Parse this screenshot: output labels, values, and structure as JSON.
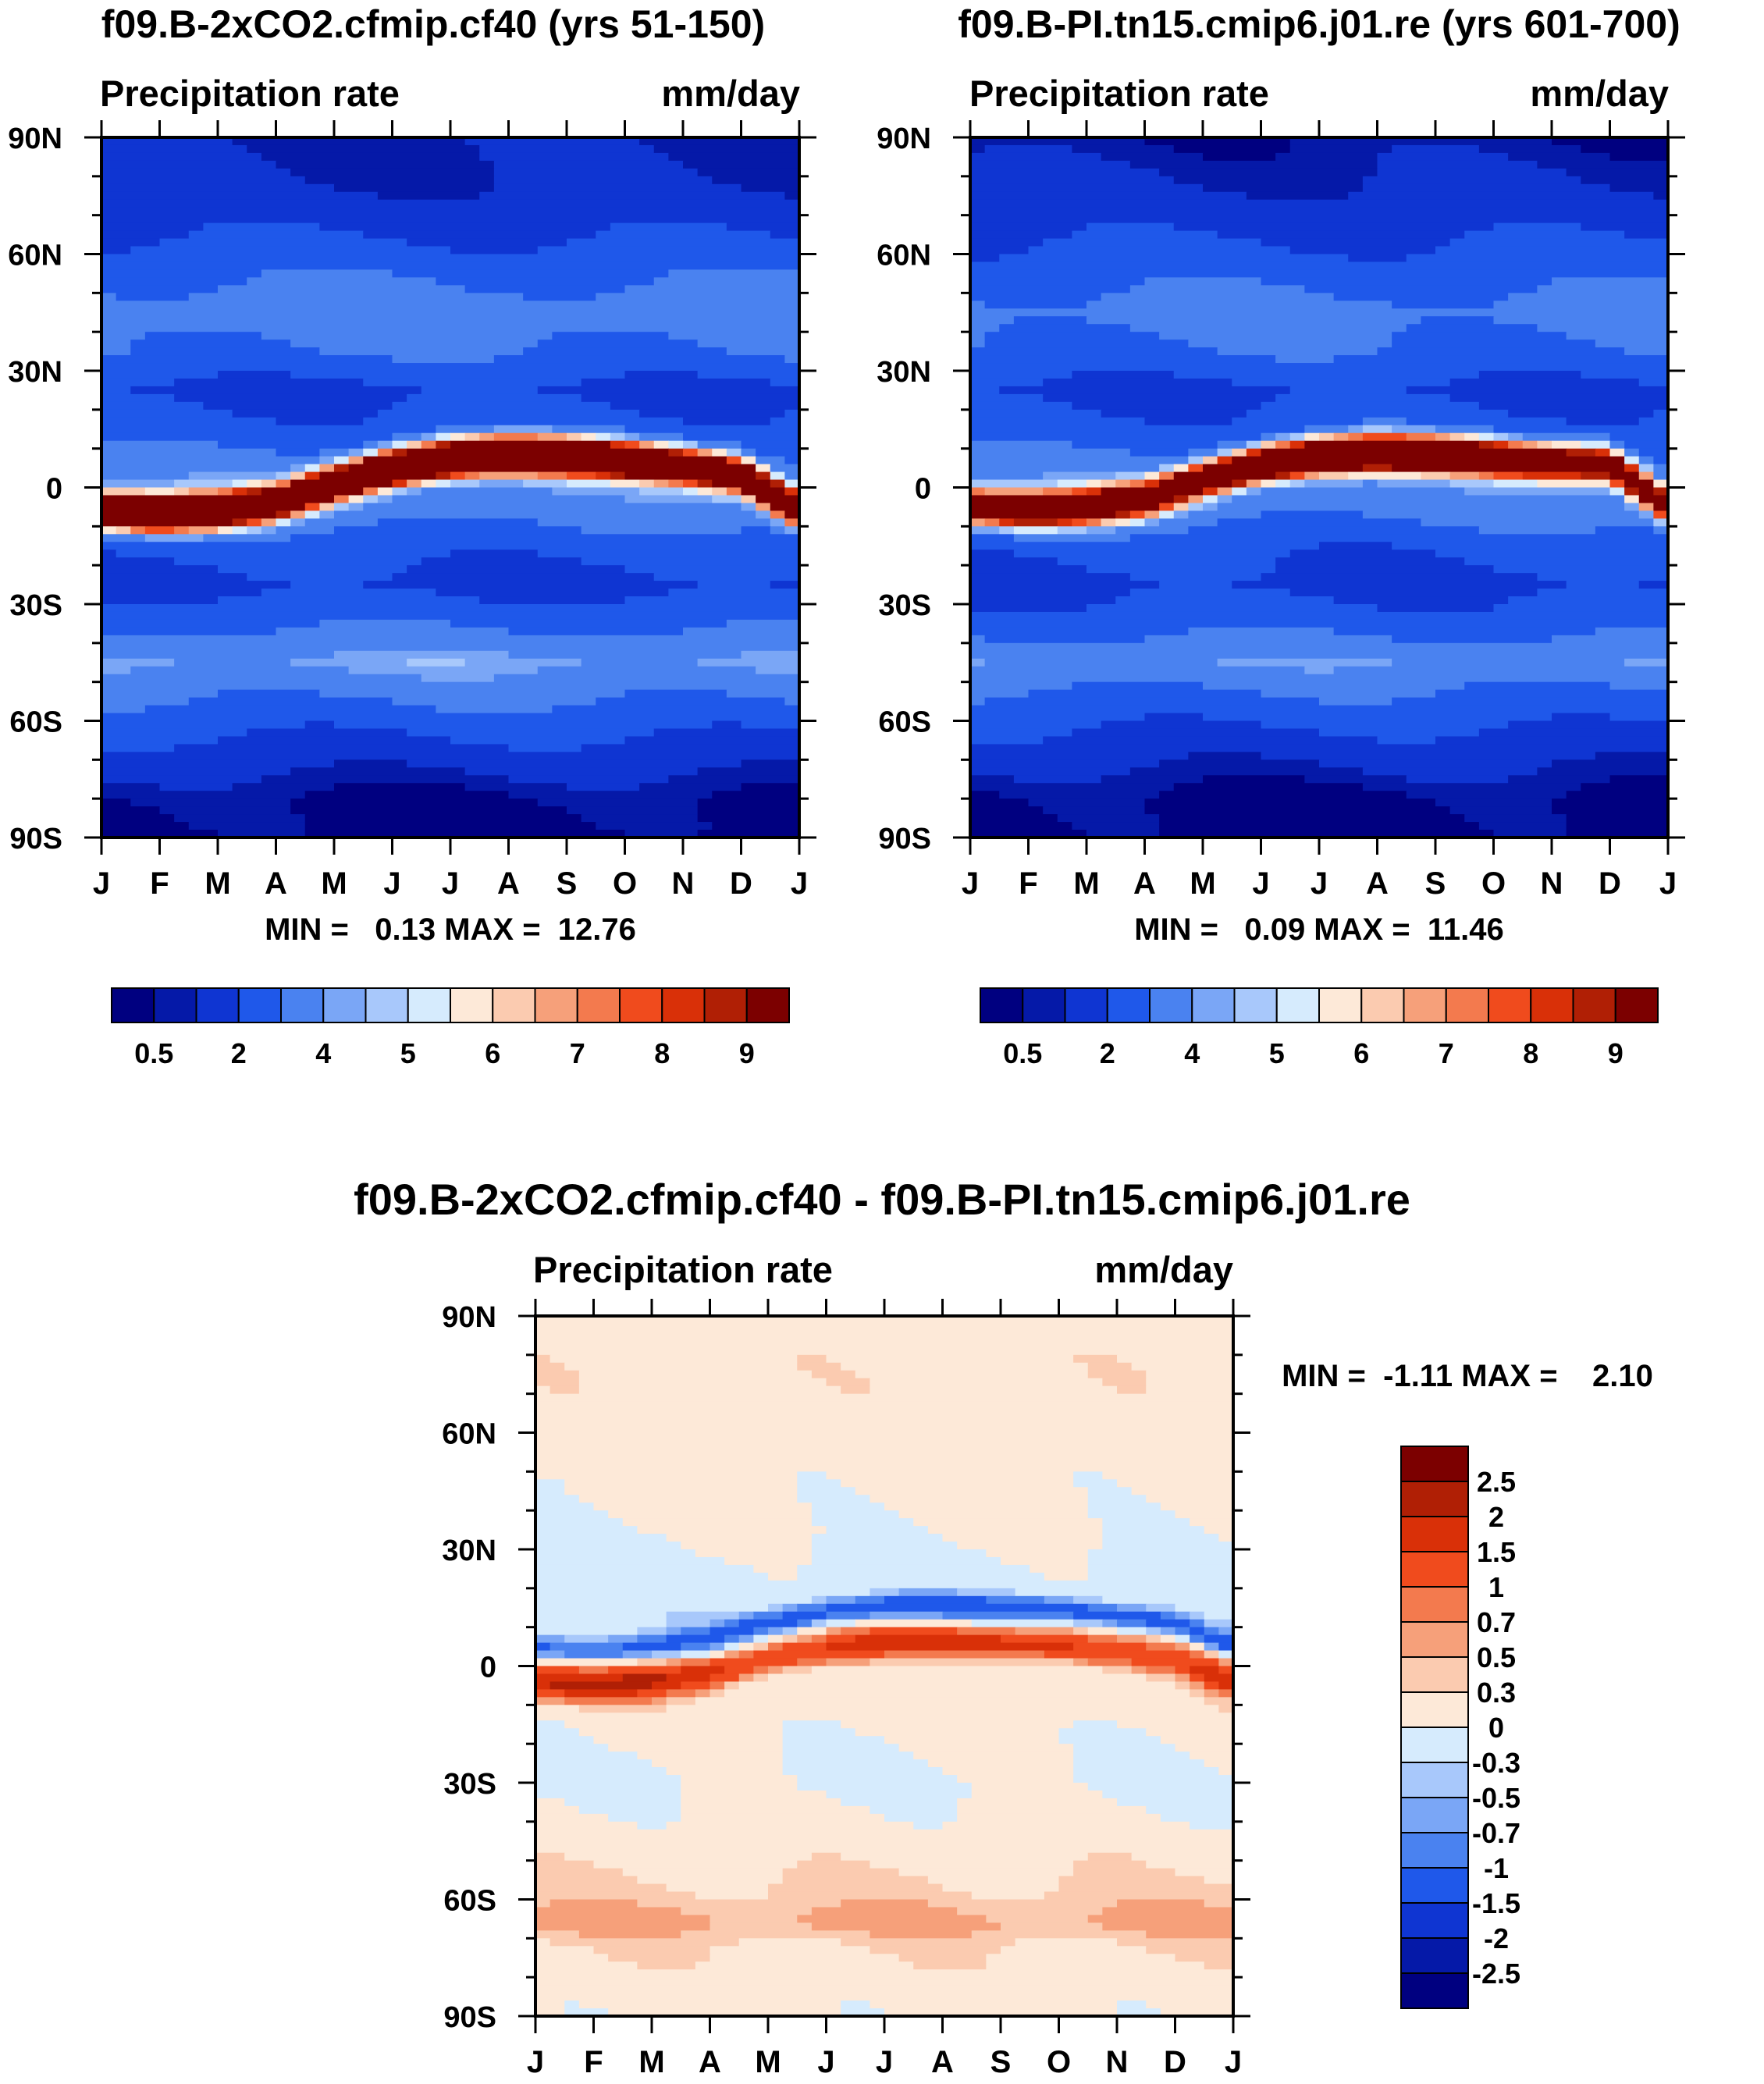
{
  "colors": {
    "abs_levels": [
      "#000080",
      "#0519a8",
      "#0f35d2",
      "#1f58ea",
      "#4a82f0",
      "#7aa6f6",
      "#a8c8fb",
      "#d6ebfd",
      "#fde9d8",
      "#fbcbb0",
      "#f6a07a",
      "#f37a4e",
      "#f04b1d",
      "#d93008",
      "#b01f05",
      "#7c0000"
    ],
    "diff_levels": [
      "#000080",
      "#0519a8",
      "#0f35d2",
      "#1f58ea",
      "#4a82f0",
      "#7aa6f6",
      "#a8c8fb",
      "#d6ebfd",
      "#fde9d8",
      "#fbcbb0",
      "#f6a07a",
      "#f37a4e",
      "#f04b1d",
      "#d93008",
      "#b01f05",
      "#7c0000"
    ]
  },
  "chart_data": [
    {
      "type": "heatmap",
      "title": "f09.B-2xCO2.cfmip.cf40 (yrs 51-150)",
      "left_label": "Precipitation rate",
      "right_label": "mm/day",
      "x_ticks": [
        "J",
        "F",
        "M",
        "A",
        "M",
        "J",
        "J",
        "A",
        "S",
        "O",
        "N",
        "D",
        "J"
      ],
      "y_ticks": [
        "90N",
        "60N",
        "30N",
        "0",
        "30S",
        "60S",
        "90S"
      ],
      "ylim": [
        -90,
        90
      ],
      "stats": "MIN =   0.13 MAX =  12.76",
      "colorbar_labels": [
        "0.5",
        "2",
        "4",
        "5",
        "6",
        "7",
        "8",
        "9"
      ],
      "field": {
        "base": [
          {
            "lat": 90,
            "v": 0.9
          },
          {
            "lat": 80,
            "v": 1.0
          },
          {
            "lat": 70,
            "v": 1.5
          },
          {
            "lat": 55,
            "v": 2.8
          },
          {
            "lat": 45,
            "v": 3.6
          },
          {
            "lat": 35,
            "v": 3.0
          },
          {
            "lat": 25,
            "v": 1.8
          },
          {
            "lat": 15,
            "v": 2.4
          },
          {
            "lat": 5,
            "v": 3.5
          },
          {
            "lat": -5,
            "v": 3.6
          },
          {
            "lat": -15,
            "v": 2.4
          },
          {
            "lat": -25,
            "v": 1.7
          },
          {
            "lat": -35,
            "v": 2.8
          },
          {
            "lat": -45,
            "v": 4.2
          },
          {
            "lat": -55,
            "v": 3.0
          },
          {
            "lat": -65,
            "v": 1.9
          },
          {
            "lat": -72,
            "v": 1.2
          },
          {
            "lat": -80,
            "v": 0.4
          },
          {
            "lat": -90,
            "v": 0.2
          }
        ],
        "itcz_lat": [
          -6,
          -7,
          -6,
          -4,
          1,
          5,
          7.5,
          8.5,
          8,
          7,
          5.5,
          3,
          -6
        ],
        "itcz_amp": [
          10.5,
          11.5,
          11.0,
          9.5,
          10.0,
          12.0,
          12.8,
          12.8,
          12.3,
          11.0,
          10.0,
          9.5,
          10.5
        ],
        "itcz_width": 4.5
      }
    },
    {
      "type": "heatmap",
      "title": "f09.B-PI.tn15.cmip6.j01.re (yrs 601-700)",
      "left_label": "Precipitation rate",
      "right_label": "mm/day",
      "x_ticks": [
        "J",
        "F",
        "M",
        "A",
        "M",
        "J",
        "J",
        "A",
        "S",
        "O",
        "N",
        "D",
        "J"
      ],
      "y_ticks": [
        "90N",
        "60N",
        "30N",
        "0",
        "30S",
        "60S",
        "90S"
      ],
      "ylim": [
        -90,
        90
      ],
      "stats": "MIN =   0.09 MAX =  11.46",
      "colorbar_labels": [
        "0.5",
        "2",
        "4",
        "5",
        "6",
        "7",
        "8",
        "9"
      ],
      "field": {
        "base": [
          {
            "lat": 90,
            "v": 0.6
          },
          {
            "lat": 80,
            "v": 1.0
          },
          {
            "lat": 70,
            "v": 1.5
          },
          {
            "lat": 55,
            "v": 2.6
          },
          {
            "lat": 45,
            "v": 3.4
          },
          {
            "lat": 35,
            "v": 2.9
          },
          {
            "lat": 25,
            "v": 1.8
          },
          {
            "lat": 15,
            "v": 2.4
          },
          {
            "lat": 5,
            "v": 3.4
          },
          {
            "lat": -5,
            "v": 3.5
          },
          {
            "lat": -15,
            "v": 2.3
          },
          {
            "lat": -25,
            "v": 1.7
          },
          {
            "lat": -35,
            "v": 2.6
          },
          {
            "lat": -45,
            "v": 3.9
          },
          {
            "lat": -55,
            "v": 2.7
          },
          {
            "lat": -65,
            "v": 1.7
          },
          {
            "lat": -72,
            "v": 1.0
          },
          {
            "lat": -80,
            "v": 0.3
          },
          {
            "lat": -90,
            "v": 0.2
          }
        ],
        "itcz_lat": [
          -5,
          -6,
          -5,
          -3,
          2,
          6,
          8,
          9,
          8.5,
          7.5,
          6.5,
          6,
          -5
        ],
        "itcz_amp": [
          8.0,
          9.5,
          9.5,
          8.5,
          9.0,
          10.5,
          11.4,
          11.4,
          11.0,
          10.0,
          9.0,
          8.5,
          8.0
        ],
        "itcz_width": 4.5
      }
    },
    {
      "type": "heatmap",
      "title": "f09.B-2xCO2.cfmip.cf40 - f09.B-PI.tn15.cmip6.j01.re",
      "left_label": "Precipitation rate",
      "right_label": "mm/day",
      "x_ticks": [
        "J",
        "F",
        "M",
        "A",
        "M",
        "J",
        "J",
        "A",
        "S",
        "O",
        "N",
        "D",
        "J"
      ],
      "y_ticks": [
        "90N",
        "60N",
        "30N",
        "0",
        "30S",
        "60S",
        "90S"
      ],
      "ylim": [
        -90,
        90
      ],
      "stats": "MIN =  -1.11 MAX =    2.10",
      "colorbar_labels": [
        "2.5",
        "2",
        "1.5",
        "1",
        "0.7",
        "0.5",
        "0.3",
        "0",
        "-0.3",
        "-0.5",
        "-0.7",
        "-1",
        "-1.5",
        "-2",
        "-2.5"
      ],
      "field": {
        "base": [
          {
            "lat": 90,
            "v": 0.15
          },
          {
            "lat": 75,
            "v": 0.2
          },
          {
            "lat": 60,
            "v": 0.15
          },
          {
            "lat": 45,
            "v": 0.1
          },
          {
            "lat": 35,
            "v": 0.05
          },
          {
            "lat": 25,
            "v": -0.1
          },
          {
            "lat": 17,
            "v": -0.15
          },
          {
            "lat": 12,
            "v": -0.2
          },
          {
            "lat": 0,
            "v": 0.1
          },
          {
            "lat": -10,
            "v": 0.15
          },
          {
            "lat": -20,
            "v": 0.05
          },
          {
            "lat": -30,
            "v": -0.05
          },
          {
            "lat": -40,
            "v": 0.1
          },
          {
            "lat": -50,
            "v": 0.2
          },
          {
            "lat": -60,
            "v": 0.4
          },
          {
            "lat": -66,
            "v": 0.6
          },
          {
            "lat": -72,
            "v": 0.3
          },
          {
            "lat": -80,
            "v": 0.15
          },
          {
            "lat": -90,
            "v": 0.1
          }
        ],
        "band_lat": [
          -4,
          -5,
          -4,
          -2,
          2,
          5,
          6.5,
          6.5,
          6,
          5.5,
          4,
          2,
          -4
        ],
        "band_amp": [
          1.9,
          2.1,
          2.0,
          1.6,
          1.3,
          1.4,
          1.8,
          1.9,
          1.8,
          1.6,
          1.3,
          1.2,
          1.9
        ],
        "band_width": 4.0,
        "neg_amp": 1.1,
        "neg_offset": 9,
        "neg_width": 3.0
      }
    }
  ]
}
